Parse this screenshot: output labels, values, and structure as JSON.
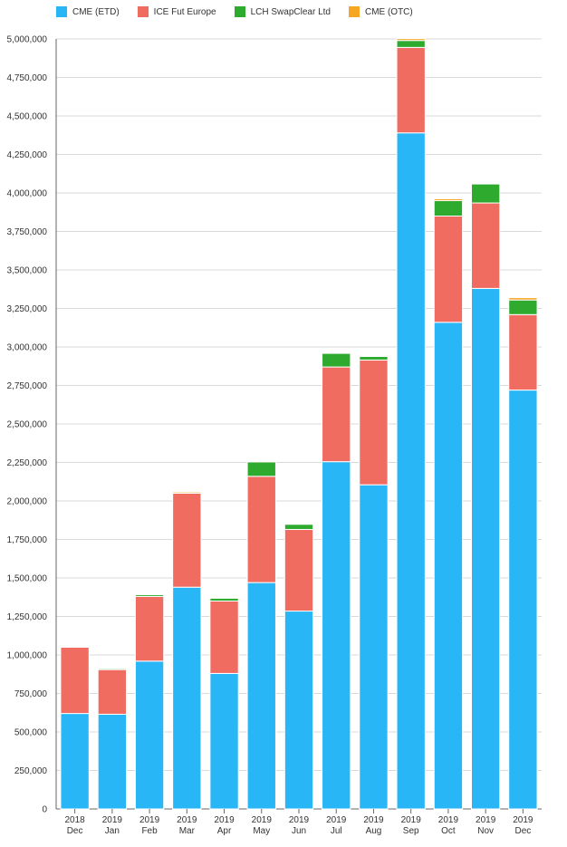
{
  "colors": {
    "cme_etd": "#29b6f6",
    "ice_fut_europe": "#f06b60",
    "lch_swapclear": "#2eaa2e",
    "cme_otc": "#f6a623",
    "grid": "#d9d9d9",
    "axis": "#666666",
    "label": "#333333"
  },
  "chart_data": {
    "type": "bar",
    "stacked": true,
    "x_tick_top": [
      "2018",
      "2019",
      "2019",
      "2019",
      "2019",
      "2019",
      "2019",
      "2019",
      "2019",
      "2019",
      "2019",
      "2019",
      "2019"
    ],
    "categories": [
      "Dec",
      "Jan",
      "Feb",
      "Mar",
      "Apr",
      "May",
      "Jun",
      "Jul",
      "Aug",
      "Sep",
      "Oct",
      "Nov",
      "Dec"
    ],
    "y_ticks": [
      "0",
      "250,000",
      "500,000",
      "750,000",
      "1,000,000",
      "1,250,000",
      "1,500,000",
      "1,750,000",
      "2,000,000",
      "2,250,000",
      "2,500,000",
      "2,750,000",
      "3,000,000",
      "3,250,000",
      "3,500,000",
      "3,750,000",
      "4,000,000",
      "4,250,000",
      "4,500,000",
      "4,750,000",
      "5,000,000"
    ],
    "ylim": [
      0,
      5000000
    ],
    "grid": true,
    "legend_position": "top-left",
    "series": [
      {
        "name": "CME (ETD)",
        "color_key": "cme_etd",
        "values": [
          620000,
          615000,
          960000,
          1440000,
          880000,
          1470000,
          1285000,
          2255000,
          2105000,
          4390000,
          3160000,
          3380000,
          2720000
        ]
      },
      {
        "name": "ICE Fut Europe",
        "color_key": "ice_fut_europe",
        "values": [
          430000,
          290000,
          420000,
          610000,
          470000,
          690000,
          530000,
          615000,
          810000,
          555000,
          690000,
          555000,
          490000
        ]
      },
      {
        "name": "LCH SwapClear Ltd",
        "color_key": "lch_swapclear",
        "values": [
          0,
          8000,
          12000,
          0,
          20000,
          95000,
          35000,
          90000,
          25000,
          45000,
          100000,
          125000,
          95000
        ]
      },
      {
        "name": "CME (OTC)",
        "color_key": "cme_otc",
        "values": [
          5000,
          4000,
          5000,
          8000,
          3000,
          3000,
          3000,
          3000,
          3000,
          12000,
          12000,
          3000,
          15000
        ]
      }
    ]
  }
}
